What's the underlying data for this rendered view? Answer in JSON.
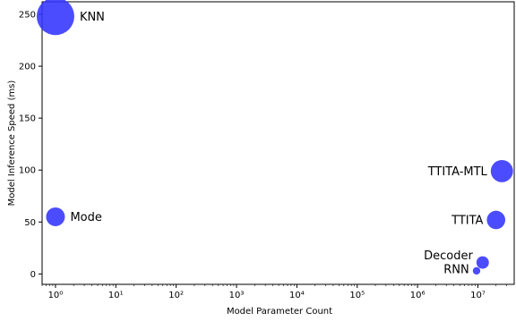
{
  "chart_data": {
    "type": "scatter",
    "title": "",
    "xlabel": "Model Parameter Count",
    "ylabel": "Model Inference Speed (ms)",
    "x_scale": "log",
    "xlim": [
      0.6,
      40000000
    ],
    "ylim": [
      -10,
      262
    ],
    "x_ticks": [
      {
        "value": 1,
        "label": "10⁰"
      },
      {
        "value": 10,
        "label": "10¹"
      },
      {
        "value": 100,
        "label": "10²"
      },
      {
        "value": 1000,
        "label": "10³"
      },
      {
        "value": 10000,
        "label": "10⁴"
      },
      {
        "value": 100000,
        "label": "10⁵"
      },
      {
        "value": 1000000,
        "label": "10⁶"
      },
      {
        "value": 10000000,
        "label": "10⁷"
      }
    ],
    "y_ticks": [
      0,
      50,
      100,
      150,
      200,
      250
    ],
    "grid": false,
    "marker_color": "#3333ff",
    "points": [
      {
        "label": "KNN",
        "x": 1,
        "y": 248,
        "size": 1.0
      },
      {
        "label": "Mode",
        "x": 1,
        "y": 55,
        "size": 0.25
      },
      {
        "label": "TTITA-MTL",
        "x": 25000000,
        "y": 99,
        "size": 0.35
      },
      {
        "label": "TTITA",
        "x": 20000000,
        "y": 52,
        "size": 0.24
      },
      {
        "label": "Decoder",
        "x": 12000000,
        "y": 11,
        "size": 0.11
      },
      {
        "label": "RNN",
        "x": 9500000,
        "y": 3,
        "size": 0.04
      }
    ]
  }
}
